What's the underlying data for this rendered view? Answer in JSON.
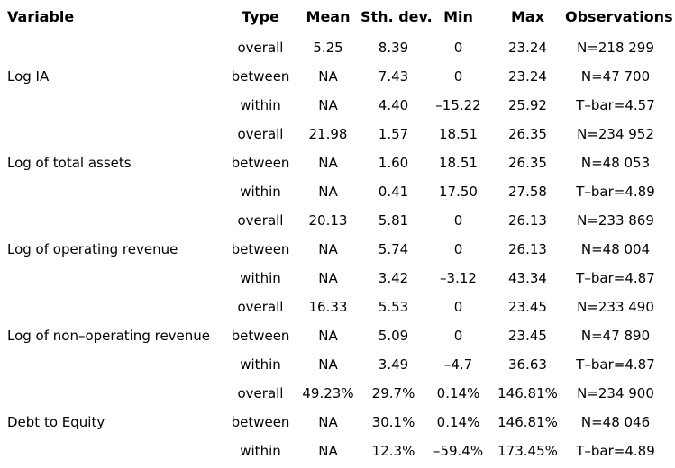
{
  "colors": {
    "background": "#ffffff",
    "text": "#000000"
  },
  "table": {
    "header": {
      "columns": [
        "Variable",
        "Type",
        "Mean",
        "Sth. dev.",
        "Min",
        "Max",
        "Observations"
      ]
    },
    "groups": [
      {
        "variable": "Log IA",
        "rows": [
          {
            "type": "overall",
            "mean": "5.25",
            "sth_dev": "8.39",
            "min": "0",
            "max": "23.24",
            "observations": "N=218 299"
          },
          {
            "type": "between",
            "mean": "NA",
            "sth_dev": "7.43",
            "min": "0",
            "max": "23.24",
            "observations": "N=47 700"
          },
          {
            "type": "within",
            "mean": "NA",
            "sth_dev": "4.40",
            "min": "–15.22",
            "max": "25.92",
            "observations": "T–bar=4.57"
          }
        ]
      },
      {
        "variable": "Log of total assets",
        "rows": [
          {
            "type": "overall",
            "mean": "21.98",
            "sth_dev": "1.57",
            "min": "18.51",
            "max": "26.35",
            "observations": "N=234 952"
          },
          {
            "type": "between",
            "mean": "NA",
            "sth_dev": "1.60",
            "min": "18.51",
            "max": "26.35",
            "observations": "N=48 053"
          },
          {
            "type": "within",
            "mean": "NA",
            "sth_dev": "0.41",
            "min": "17.50",
            "max": "27.58",
            "observations": "T–bar=4.89"
          }
        ]
      },
      {
        "variable": "Log of operating revenue",
        "rows": [
          {
            "type": "overall",
            "mean": "20.13",
            "sth_dev": "5.81",
            "min": "0",
            "max": "26.13",
            "observations": "N=233 869"
          },
          {
            "type": "between",
            "mean": "NA",
            "sth_dev": "5.74",
            "min": "0",
            "max": "26.13",
            "observations": "N=48 004"
          },
          {
            "type": "within",
            "mean": "NA",
            "sth_dev": "3.42",
            "min": "–3.12",
            "max": "43.34",
            "observations": "T–bar=4.87"
          }
        ]
      },
      {
        "variable": "Log of non–operating revenue",
        "rows": [
          {
            "type": "overall",
            "mean": "16.33",
            "sth_dev": "5.53",
            "min": "0",
            "max": "23.45",
            "observations": "N=233 490"
          },
          {
            "type": "between",
            "mean": "NA",
            "sth_dev": "5.09",
            "min": "0",
            "max": "23.45",
            "observations": "N=47 890"
          },
          {
            "type": "within",
            "mean": "NA",
            "sth_dev": "3.49",
            "min": "–4.7",
            "max": "36.63",
            "observations": "T–bar=4.87"
          }
        ]
      },
      {
        "variable": "Debt to Equity",
        "rows": [
          {
            "type": "overall",
            "mean": "49.23%",
            "sth_dev": "29.7%",
            "min": "0.14%",
            "max": "146.81%",
            "observations": "N=234 900"
          },
          {
            "type": "between",
            "mean": "NA",
            "sth_dev": "30.1%",
            "min": "0.14%",
            "max": "146.81%",
            "observations": "N=48 046"
          },
          {
            "type": "within",
            "mean": "NA",
            "sth_dev": "12.3%",
            "min": "–59.4%",
            "max": "173.45%",
            "observations": "T–bar=4.89"
          }
        ]
      }
    ]
  }
}
